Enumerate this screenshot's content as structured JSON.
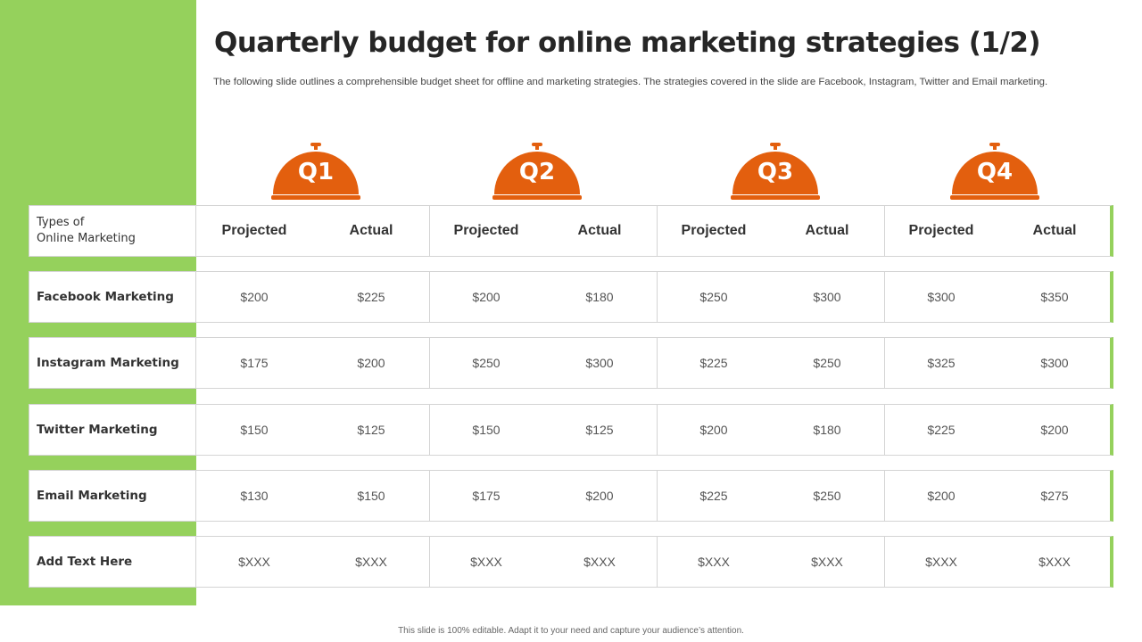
{
  "slide": {
    "title": "Quarterly budget for online marketing strategies (1/2)",
    "subtitle": "The following slide outlines a comprehensible budget sheet for offline and marketing strategies. The strategies covered in the slide are Facebook, Instagram, Twitter and Email marketing.",
    "footer": "This slide is 100% editable.  Adapt it to your need and capture your audience’s attention."
  },
  "colors": {
    "accent_green": "#95d15c",
    "accent_orange": "#e35f0e"
  },
  "quarters": [
    "Q1",
    "Q2",
    "Q3",
    "Q4"
  ],
  "table": {
    "header": {
      "label_line1": "Types of",
      "label_line2": "Online Marketing",
      "projected": "Projected",
      "actual": "Actual"
    },
    "rows": [
      {
        "label": "Facebook Marketing",
        "values": [
          "$200",
          "$225",
          "$200",
          "$180",
          "$250",
          "$300",
          "$300",
          "$350"
        ]
      },
      {
        "label": "Instagram Marketing",
        "values": [
          "$175",
          "$200",
          "$250",
          "$300",
          "$225",
          "$250",
          "$325",
          "$300"
        ]
      },
      {
        "label": "Twitter Marketing",
        "values": [
          "$150",
          "$125",
          "$150",
          "$125",
          "$200",
          "$180",
          "$225",
          "$200"
        ]
      },
      {
        "label": "Email Marketing",
        "values": [
          "$130",
          "$150",
          "$175",
          "$200",
          "$225",
          "$250",
          "$200",
          "$275"
        ]
      },
      {
        "label": "Add Text Here",
        "values": [
          "$XXX",
          "$XXX",
          "$XXX",
          "$XXX",
          "$XXX",
          "$XXX",
          "$XXX",
          "$XXX"
        ]
      }
    ]
  }
}
